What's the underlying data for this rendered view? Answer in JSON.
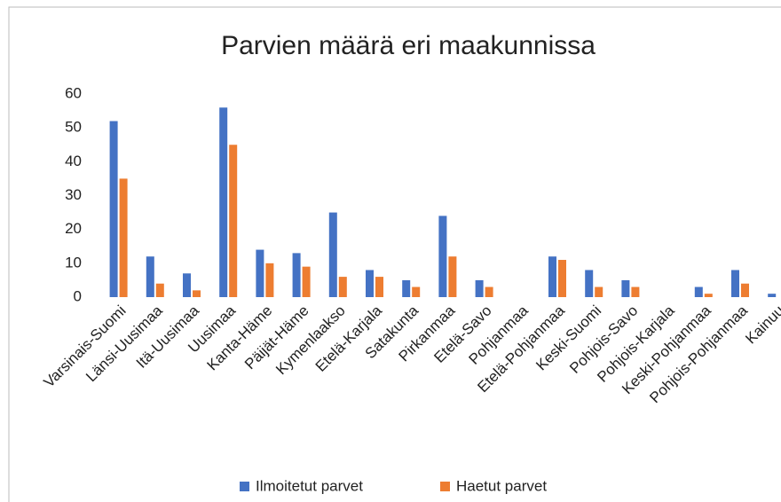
{
  "chart_data": {
    "type": "bar",
    "title": "Parvien määrä eri maakunnissa",
    "categories": [
      "Varsinais-Suomi",
      "Länsi-Uusimaa",
      "Itä-Uusimaa",
      "Uusimaa",
      "Kanta-Häme",
      "Päijät-Häme",
      "Kymenlaakso",
      "Etelä-Karjala",
      "Satakunta",
      "Pirkanmaa",
      "Etelä-Savo",
      "Pohjanmaa",
      "Etelä-Pohjanmaa",
      "Keski-Suomi",
      "Pohjois-Savo",
      "Pohjois-Karjala",
      "Keski-Pohjanmaa",
      "Pohjois-Pohjanmaa",
      "Kainuu"
    ],
    "series": [
      {
        "name": "Ilmoitetut parvet",
        "color": "#4472c4",
        "values": [
          52,
          12,
          7,
          56,
          14,
          13,
          25,
          8,
          5,
          24,
          5,
          0,
          12,
          8,
          5,
          0,
          3,
          8,
          1
        ]
      },
      {
        "name": "Haetut parvet",
        "color": "#ed7d31",
        "values": [
          35,
          4,
          2,
          45,
          10,
          9,
          6,
          6,
          3,
          12,
          3,
          0,
          11,
          3,
          3,
          0,
          1,
          4,
          0
        ]
      }
    ],
    "ylim": [
      0,
      60
    ],
    "yticks": [
      0,
      10,
      20,
      30,
      40,
      50,
      60
    ],
    "grid": false,
    "legend": "bottom"
  }
}
